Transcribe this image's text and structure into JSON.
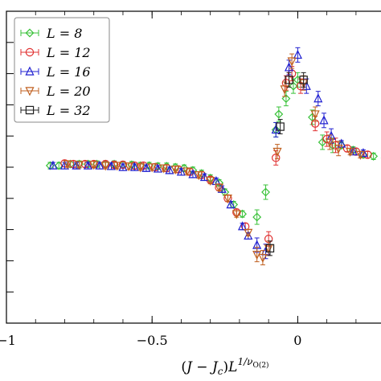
{
  "chart_data": {
    "type": "scatter",
    "title": "",
    "xlabel": "(J − J_c)L^{1/ν_O(2)}",
    "xlabel_parts": {
      "open": "(",
      "J": "J",
      "minus": " − ",
      "Jc": "J",
      "c_sub": "c",
      "close": ")",
      "L": "L",
      "exp": "1/ν",
      "exp_sub": "O(2)"
    },
    "ylabel": "",
    "xlim": [
      -1.0,
      0.33
    ],
    "ylim": [
      0.0,
      1.0
    ],
    "x_ticks": [
      -1.0,
      -0.5,
      0.0
    ],
    "x_tick_labels": [
      "−1",
      "−0.5",
      "0"
    ],
    "y_ticks": [
      0.0,
      0.1,
      0.2,
      0.3,
      0.4,
      0.5,
      0.6,
      0.7,
      0.8,
      0.9,
      1.0
    ],
    "grid": false,
    "legend_position": "top-left",
    "legend_prefix": "L = ",
    "series": [
      {
        "name": "8",
        "marker": "diamond",
        "color": "#3ac23a",
        "points": [
          [
            -0.85,
            0.505
          ],
          [
            -0.82,
            0.505
          ],
          [
            -0.78,
            0.51
          ],
          [
            -0.75,
            0.51
          ],
          [
            -0.72,
            0.51
          ],
          [
            -0.69,
            0.51
          ],
          [
            -0.66,
            0.51
          ],
          [
            -0.63,
            0.51
          ],
          [
            -0.6,
            0.508
          ],
          [
            -0.57,
            0.508
          ],
          [
            -0.54,
            0.505
          ],
          [
            -0.51,
            0.505
          ],
          [
            -0.48,
            0.503
          ],
          [
            -0.45,
            0.503
          ],
          [
            -0.42,
            0.5
          ],
          [
            -0.39,
            0.497
          ],
          [
            -0.36,
            0.49
          ],
          [
            -0.33,
            0.48
          ],
          [
            -0.3,
            0.465
          ],
          [
            -0.27,
            0.45
          ],
          [
            -0.25,
            0.42
          ],
          [
            -0.22,
            0.38
          ],
          [
            -0.19,
            0.35
          ],
          [
            -0.14,
            0.34
          ],
          [
            -0.11,
            0.42
          ],
          [
            -0.075,
            0.62
          ],
          [
            -0.065,
            0.67
          ],
          [
            -0.04,
            0.72
          ],
          [
            -0.015,
            0.76
          ],
          [
            0.0,
            0.78
          ],
          [
            0.05,
            0.66
          ],
          [
            0.085,
            0.58
          ],
          [
            0.12,
            0.57
          ],
          [
            0.15,
            0.57
          ],
          [
            0.19,
            0.555
          ],
          [
            0.225,
            0.54
          ],
          [
            0.26,
            0.535
          ],
          [
            0.3,
            0.53
          ]
        ]
      },
      {
        "name": "12",
        "marker": "circle",
        "color": "#e03030",
        "points": [
          [
            -0.8,
            0.512
          ],
          [
            -0.77,
            0.51
          ],
          [
            -0.73,
            0.51
          ],
          [
            -0.7,
            0.51
          ],
          [
            -0.66,
            0.51
          ],
          [
            -0.63,
            0.508
          ],
          [
            -0.6,
            0.508
          ],
          [
            -0.56,
            0.505
          ],
          [
            -0.53,
            0.505
          ],
          [
            -0.49,
            0.5
          ],
          [
            -0.45,
            0.497
          ],
          [
            -0.41,
            0.493
          ],
          [
            -0.37,
            0.485
          ],
          [
            -0.33,
            0.475
          ],
          [
            -0.3,
            0.46
          ],
          [
            -0.27,
            0.435
          ],
          [
            -0.24,
            0.4
          ],
          [
            -0.21,
            0.355
          ],
          [
            -0.18,
            0.31
          ],
          [
            -0.1,
            0.27
          ],
          [
            -0.075,
            0.53
          ],
          [
            -0.04,
            0.77
          ],
          [
            -0.02,
            0.8
          ],
          [
            0.01,
            0.76
          ],
          [
            0.06,
            0.64
          ],
          [
            0.1,
            0.59
          ],
          [
            0.13,
            0.57
          ],
          [
            0.17,
            0.56
          ],
          [
            0.2,
            0.55
          ],
          [
            0.24,
            0.54
          ]
        ]
      },
      {
        "name": "16",
        "marker": "triangle-up",
        "color": "#2020d0",
        "points": [
          [
            -0.84,
            0.505
          ],
          [
            -0.8,
            0.505
          ],
          [
            -0.76,
            0.505
          ],
          [
            -0.72,
            0.505
          ],
          [
            -0.68,
            0.505
          ],
          [
            -0.64,
            0.503
          ],
          [
            -0.6,
            0.5
          ],
          [
            -0.56,
            0.5
          ],
          [
            -0.52,
            0.497
          ],
          [
            -0.48,
            0.495
          ],
          [
            -0.44,
            0.49
          ],
          [
            -0.4,
            0.485
          ],
          [
            -0.36,
            0.477
          ],
          [
            -0.32,
            0.468
          ],
          [
            -0.28,
            0.455
          ],
          [
            -0.26,
            0.43
          ],
          [
            -0.23,
            0.38
          ],
          [
            -0.19,
            0.31
          ],
          [
            -0.17,
            0.28
          ],
          [
            -0.14,
            0.25
          ],
          [
            -0.11,
            0.23
          ],
          [
            -0.075,
            0.62
          ],
          [
            -0.03,
            0.82
          ],
          [
            0.0,
            0.86
          ],
          [
            0.03,
            0.76
          ],
          [
            0.07,
            0.72
          ],
          [
            0.09,
            0.65
          ],
          [
            0.115,
            0.6
          ],
          [
            0.15,
            0.575
          ],
          [
            0.19,
            0.55
          ],
          [
            0.225,
            0.545
          ]
        ]
      },
      {
        "name": "20",
        "marker": "triangle-down",
        "color": "#c06020",
        "points": [
          [
            -0.79,
            0.51
          ],
          [
            -0.75,
            0.508
          ],
          [
            -0.7,
            0.508
          ],
          [
            -0.66,
            0.505
          ],
          [
            -0.62,
            0.505
          ],
          [
            -0.58,
            0.503
          ],
          [
            -0.54,
            0.5
          ],
          [
            -0.5,
            0.5
          ],
          [
            -0.46,
            0.497
          ],
          [
            -0.42,
            0.493
          ],
          [
            -0.38,
            0.487
          ],
          [
            -0.34,
            0.475
          ],
          [
            -0.3,
            0.457
          ],
          [
            -0.27,
            0.435
          ],
          [
            -0.24,
            0.4
          ],
          [
            -0.21,
            0.35
          ],
          [
            -0.17,
            0.29
          ],
          [
            -0.14,
            0.22
          ],
          [
            -0.12,
            0.21
          ],
          [
            -0.1,
            0.24
          ],
          [
            -0.07,
            0.55
          ],
          [
            -0.045,
            0.75
          ],
          [
            -0.02,
            0.84
          ],
          [
            0.02,
            0.77
          ],
          [
            0.06,
            0.67
          ],
          [
            0.11,
            0.58
          ],
          [
            0.14,
            0.56
          ],
          [
            0.18,
            0.55
          ],
          [
            0.215,
            0.54
          ]
        ]
      },
      {
        "name": "32",
        "marker": "square",
        "color": "#202020",
        "points": [
          [
            -0.095,
            0.24
          ],
          [
            -0.06,
            0.63
          ],
          [
            -0.03,
            0.78
          ],
          [
            0.02,
            0.78
          ]
        ]
      }
    ]
  }
}
